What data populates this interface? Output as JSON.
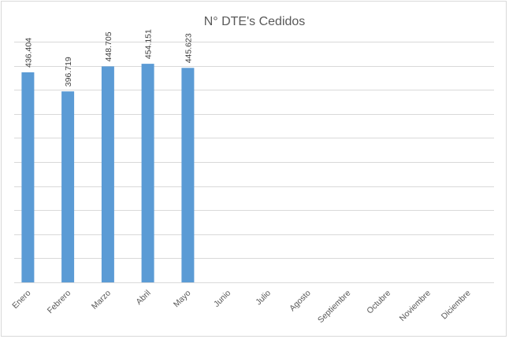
{
  "chart_data": {
    "type": "bar",
    "title": "N° DTE's Cedidos",
    "categories": [
      "Enero",
      "Febrero",
      "Marzo",
      "Abril",
      "Mayo",
      "Junio",
      "Julio",
      "Agosto",
      "Septiembre",
      "Octubre",
      "Noviembre",
      "Diciembre"
    ],
    "values": [
      436.404,
      396.719,
      448.705,
      454.151,
      445.623,
      null,
      null,
      null,
      null,
      null,
      null,
      null
    ],
    "data_labels": [
      "436.404",
      "396.719",
      "448.705",
      "454.151",
      "445.623",
      "",
      "",
      "",
      "",
      "",
      "",
      ""
    ],
    "ylim": [
      0,
      500
    ],
    "y_gridline_count": 10,
    "grid": true,
    "y_tick_labels_visible": false,
    "legend": "none",
    "bar_color": "#5b9bd5"
  }
}
